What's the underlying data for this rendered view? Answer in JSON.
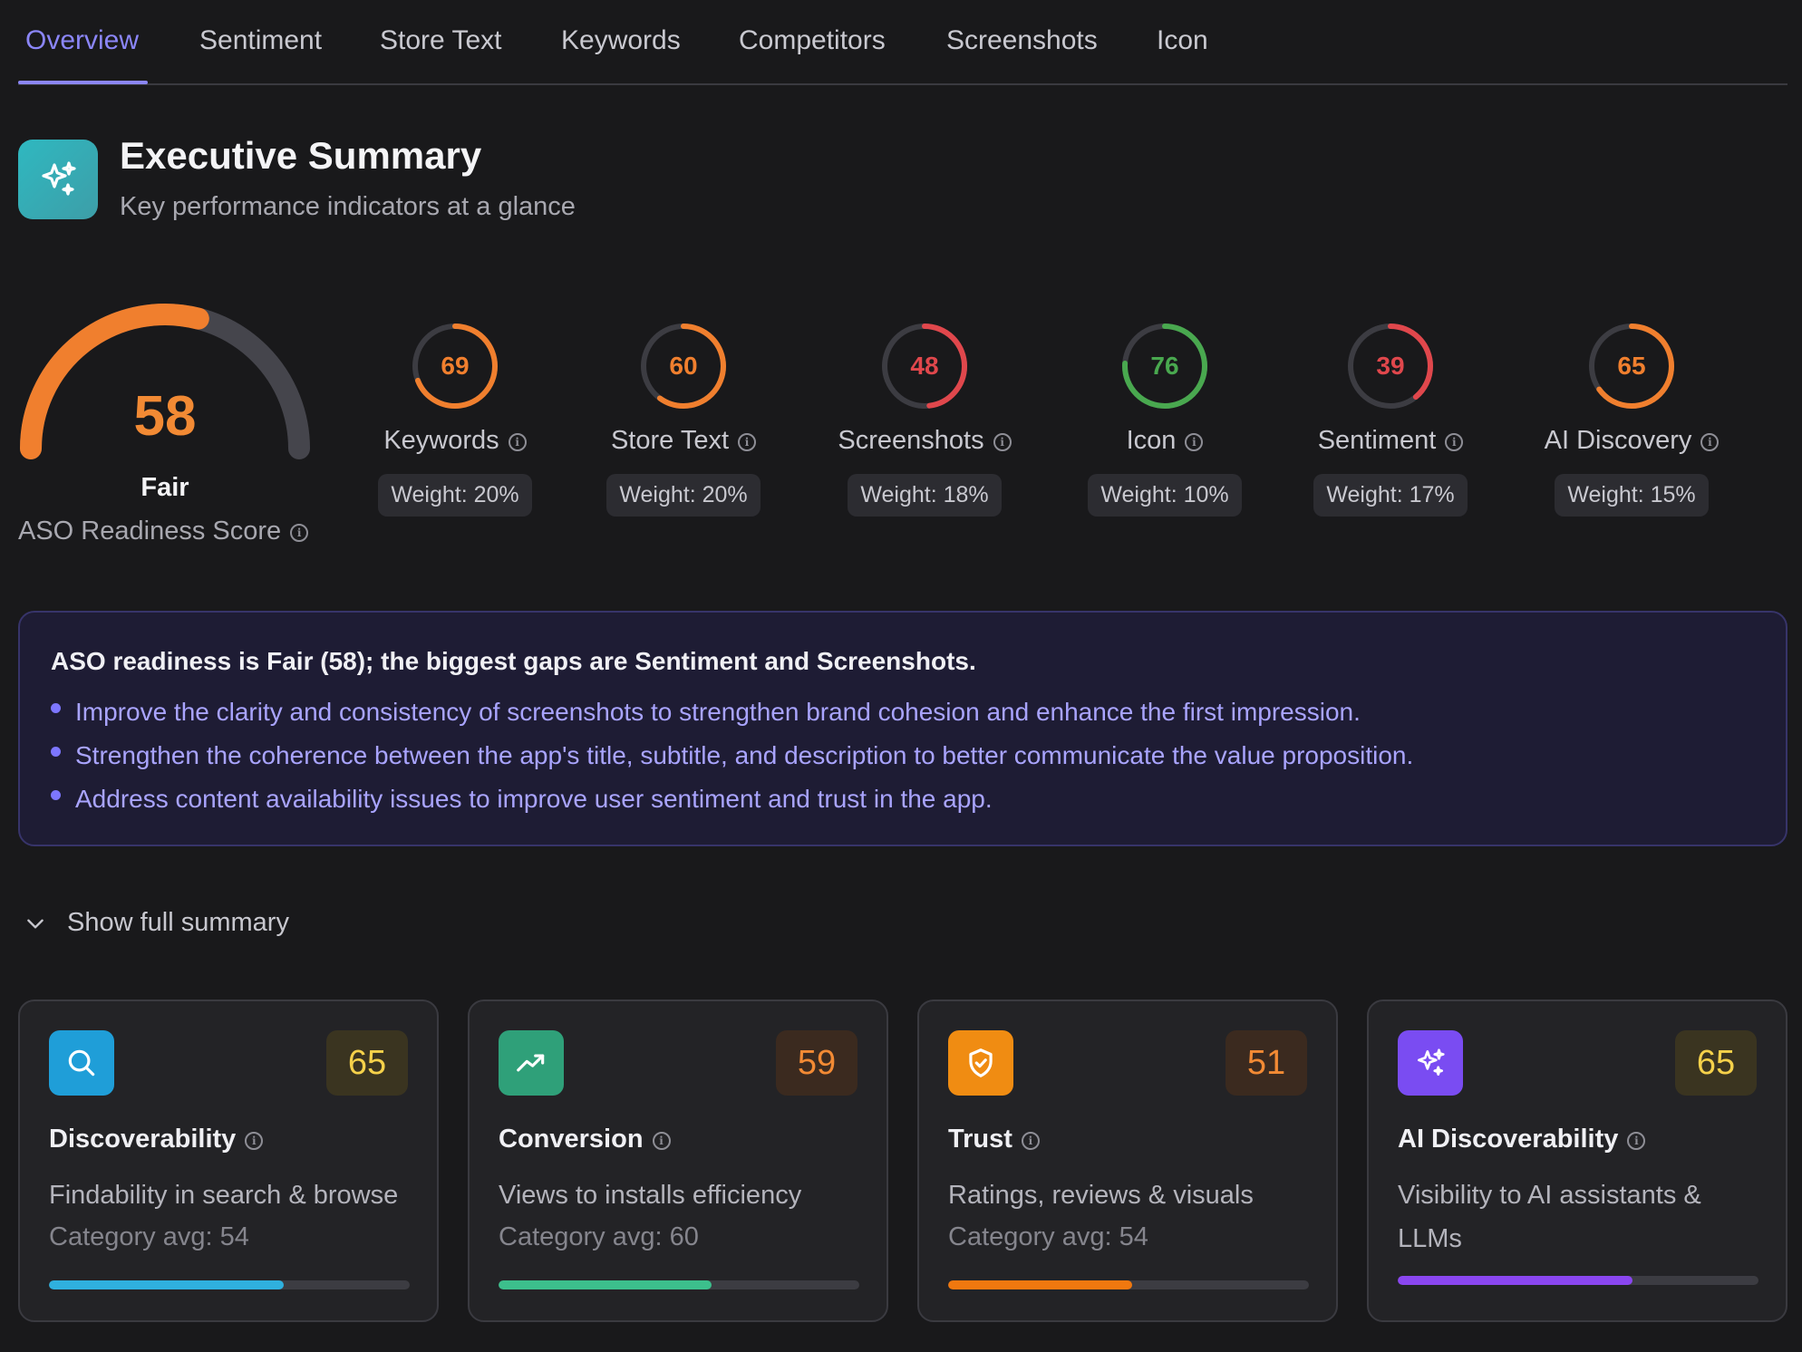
{
  "tabs": [
    {
      "label": "Overview",
      "active": true
    },
    {
      "label": "Sentiment"
    },
    {
      "label": "Store Text"
    },
    {
      "label": "Keywords"
    },
    {
      "label": "Competitors"
    },
    {
      "label": "Screenshots"
    },
    {
      "label": "Icon"
    }
  ],
  "header": {
    "title": "Executive Summary",
    "subtitle": "Key performance indicators at a glance",
    "icon": "sparkles-icon"
  },
  "overall": {
    "score": 58,
    "max": 100,
    "rating": "Fair",
    "caption": "ASO Readiness Score",
    "color": "#f07f2e"
  },
  "metrics": [
    {
      "name": "Keywords",
      "score": 69,
      "weight": "Weight: 20%",
      "color": "#f07f2e"
    },
    {
      "name": "Store Text",
      "score": 60,
      "weight": "Weight: 20%",
      "color": "#f07f2e"
    },
    {
      "name": "Screenshots",
      "score": 48,
      "weight": "Weight: 18%",
      "color": "#e0474c"
    },
    {
      "name": "Icon",
      "score": 76,
      "weight": "Weight: 10%",
      "color": "#49a84f"
    },
    {
      "name": "Sentiment",
      "score": 39,
      "weight": "Weight: 17%",
      "color": "#e0474c"
    },
    {
      "name": "AI Discovery",
      "score": 65,
      "weight": "Weight: 15%",
      "color": "#f07f2e"
    }
  ],
  "summary": {
    "headline": "ASO readiness is Fair (58); the biggest gaps are Sentiment and Screenshots.",
    "bullets": [
      "Improve the clarity and consistency of screenshots to strengthen brand cohesion and enhance the first impression.",
      "Strengthen the coherence between the app's title, subtitle, and description to better communicate the value proposition.",
      "Address content availability issues to improve user sentiment and trust in the app."
    ]
  },
  "show_full_label": "Show full summary",
  "cards": [
    {
      "title": "Discoverability",
      "score": 65,
      "desc": "Findability in search & browse",
      "avg": "Category avg: 54",
      "icon": "search-icon",
      "progress": 0.65,
      "score_color": "#f5d14a",
      "score_bg": "#3a3420",
      "icon_bg": "#1f9ed8",
      "bar": "#2fb0de"
    },
    {
      "title": "Conversion",
      "score": 59,
      "desc": "Views to installs efficiency",
      "avg": "Category avg: 60",
      "icon": "trending-up-icon",
      "progress": 0.59,
      "score_color": "#f28a34",
      "score_bg": "#3b2a1f",
      "icon_bg": "#2fa079",
      "bar": "#3cbf8c"
    },
    {
      "title": "Trust",
      "score": 51,
      "desc": "Ratings, reviews & visuals",
      "avg": "Category avg: 54",
      "icon": "shield-check-icon",
      "progress": 0.51,
      "score_color": "#f28a34",
      "score_bg": "#3b2a1f",
      "icon_bg": "#f08c12",
      "bar": "#f0780f"
    },
    {
      "title": "AI Discoverability",
      "score": 65,
      "desc": "Visibility to AI assistants & LLMs",
      "avg": "",
      "icon": "sparkles-icon",
      "progress": 0.65,
      "score_color": "#f5d14a",
      "score_bg": "#3a3420",
      "icon_bg": "#7a4cf2",
      "bar": "#8a46f0"
    }
  ]
}
